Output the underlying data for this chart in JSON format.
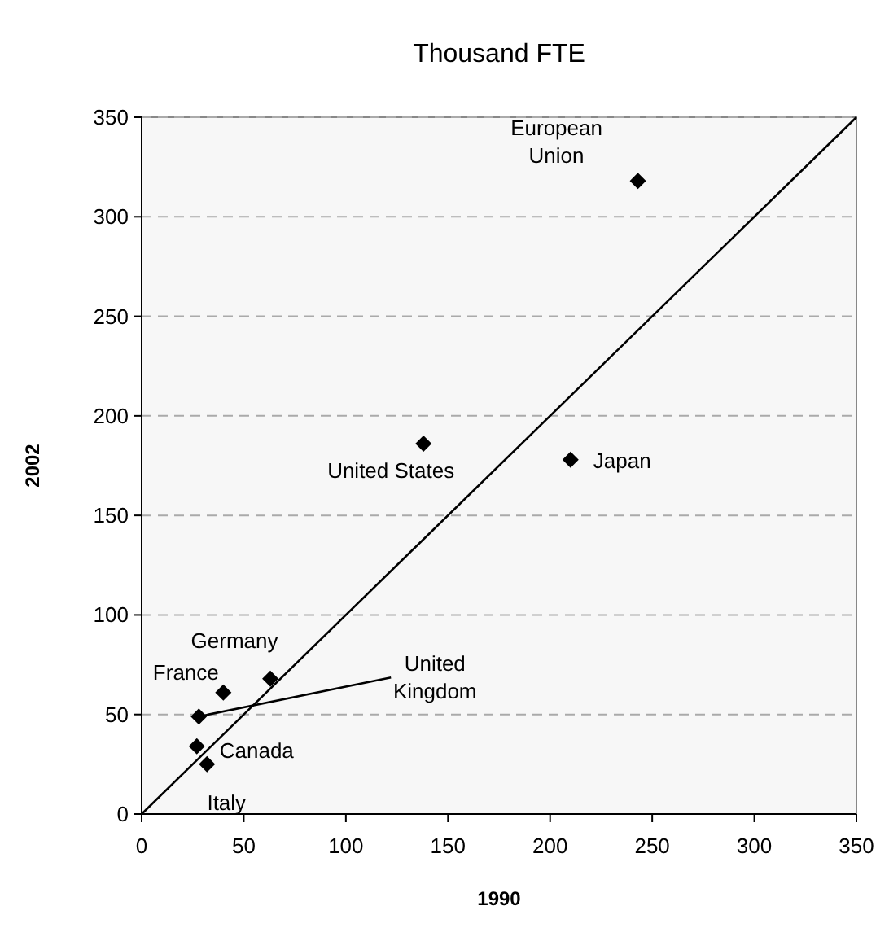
{
  "chart_data": {
    "type": "scatter",
    "title": "Thousand FTE",
    "xlabel": "1990",
    "ylabel": "2002",
    "xlim": [
      0,
      350
    ],
    "ylim": [
      0,
      350
    ],
    "xticks": [
      0,
      50,
      100,
      150,
      200,
      250,
      300,
      350
    ],
    "yticks": [
      0,
      50,
      100,
      150,
      200,
      250,
      300,
      350
    ],
    "grid": "y",
    "series": [
      {
        "color": "#000000",
        "marker": "diamond",
        "x": [
          243,
          138,
          210,
          63,
          40,
          28,
          27,
          32
        ],
        "values": [
          318,
          186,
          178,
          68,
          61,
          49,
          34,
          25
        ]
      },
      {
        "type": "line",
        "color": "#000000",
        "marker": "none",
        "x": [
          0,
          350
        ],
        "values": [
          0,
          350
        ]
      }
    ],
    "annotations": [
      {
        "text": "European Union",
        "x": 243,
        "y": 318
      },
      {
        "text": "United States",
        "x": 138,
        "y": 186
      },
      {
        "text": "Japan",
        "x": 210,
        "y": 178
      },
      {
        "text": "Germany",
        "x": 63,
        "y": 68
      },
      {
        "text": "France",
        "x": 40,
        "y": 61
      },
      {
        "text": "United Kingdom",
        "x": 28,
        "y": 49
      },
      {
        "text": "Canada",
        "x": 27,
        "y": 34
      },
      {
        "text": "Italy",
        "x": 32,
        "y": 25
      }
    ]
  }
}
